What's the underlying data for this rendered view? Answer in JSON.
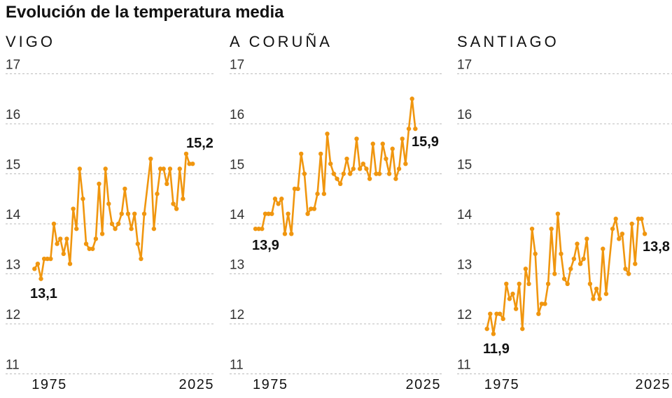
{
  "title": "Evolución de la temperatura media",
  "colors": {
    "line": "#F0960F",
    "grid": "#BBBBBB",
    "text": "#111111"
  },
  "chart_data": [
    {
      "type": "line",
      "title": "VIGO",
      "ylim": [
        11,
        17
      ],
      "yticks": [
        "17",
        "16",
        "15",
        "14",
        "13",
        "12",
        "11"
      ],
      "xtick_labels": [
        "1975",
        "2025"
      ],
      "grid": true,
      "x_start": 1975,
      "x_end": 2024,
      "values": [
        13.1,
        13.2,
        12.9,
        13.3,
        13.3,
        13.3,
        14.0,
        13.6,
        13.7,
        13.4,
        13.7,
        13.2,
        14.3,
        13.9,
        15.1,
        14.5,
        13.6,
        13.5,
        13.5,
        13.7,
        14.8,
        13.8,
        15.1,
        14.4,
        14.0,
        13.9,
        14.0,
        14.2,
        14.7,
        14.2,
        13.9,
        14.2,
        13.6,
        13.3,
        14.2,
        null,
        15.3,
        13.9,
        14.6,
        15.1,
        15.1,
        14.8,
        15.1,
        14.4,
        14.3,
        15.1,
        14.5,
        15.4,
        15.2,
        15.2
      ],
      "first_label": "13,1",
      "last_label": "15,2"
    },
    {
      "type": "line",
      "title": "A CORUÑA",
      "ylim": [
        11,
        17
      ],
      "yticks": [
        "17",
        "16",
        "15",
        "14",
        "13",
        "12",
        "11"
      ],
      "xtick_labels": [
        "1975",
        "2025"
      ],
      "grid": true,
      "x_start": 1975,
      "x_end": 2024,
      "values": [
        13.9,
        13.9,
        13.9,
        14.2,
        14.2,
        14.2,
        14.5,
        14.4,
        14.5,
        13.8,
        14.2,
        13.8,
        14.7,
        14.7,
        15.4,
        15.0,
        14.2,
        14.3,
        14.3,
        14.6,
        15.4,
        14.6,
        15.8,
        15.2,
        15.0,
        14.9,
        14.8,
        15.0,
        15.3,
        15.0,
        15.1,
        15.7,
        15.1,
        15.2,
        15.1,
        14.9,
        15.6,
        15.0,
        15.0,
        15.6,
        15.3,
        15.0,
        15.5,
        14.9,
        15.1,
        15.7,
        15.2,
        15.9,
        16.5,
        15.9
      ],
      "first_label": "13,9",
      "last_label": "15,9"
    },
    {
      "type": "line",
      "title": "SANTIAGO",
      "ylim": [
        11,
        17
      ],
      "yticks": [
        "17",
        "16",
        "15",
        "14",
        "13",
        "12",
        "11"
      ],
      "xtick_labels": [
        "1975",
        "2025"
      ],
      "grid": true,
      "x_start": 1975,
      "x_end": 2024,
      "values": [
        11.9,
        12.2,
        11.8,
        12.2,
        12.2,
        12.1,
        12.8,
        12.5,
        12.6,
        12.3,
        12.8,
        11.9,
        13.1,
        12.8,
        13.9,
        13.4,
        12.2,
        12.4,
        12.4,
        12.8,
        13.9,
        13.0,
        14.2,
        13.4,
        12.9,
        12.8,
        13.1,
        13.3,
        13.6,
        13.2,
        13.3,
        13.7,
        12.8,
        12.5,
        12.7,
        12.5,
        13.5,
        12.6,
        null,
        13.9,
        14.1,
        13.7,
        13.8,
        13.1,
        13.0,
        14.0,
        13.2,
        14.1,
        14.1,
        13.8
      ],
      "first_label": "11,9",
      "last_label": "13,8"
    }
  ]
}
